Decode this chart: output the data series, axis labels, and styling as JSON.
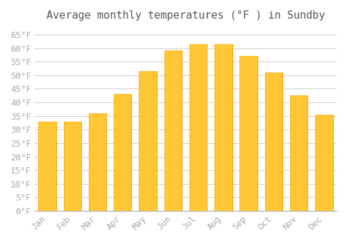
{
  "title": "Average monthly temperatures (°F ) in Sundby",
  "months": [
    "Jan",
    "Feb",
    "Mar",
    "Apr",
    "May",
    "Jun",
    "Jul",
    "Aug",
    "Sep",
    "Oct",
    "Nov",
    "Dec"
  ],
  "values": [
    33,
    33,
    36,
    43,
    51.5,
    59,
    61.5,
    61.5,
    57,
    51,
    42.5,
    35.5
  ],
  "bar_color": "#FFC020",
  "bar_edge_color": "#FFA500",
  "background_color": "#FFFFFF",
  "grid_color": "#CCCCCC",
  "text_color": "#AAAAAA",
  "ylim": [
    0,
    68
  ],
  "yticks": [
    0,
    5,
    10,
    15,
    20,
    25,
    30,
    35,
    40,
    45,
    50,
    55,
    60,
    65
  ],
  "title_fontsize": 11,
  "tick_fontsize": 9
}
